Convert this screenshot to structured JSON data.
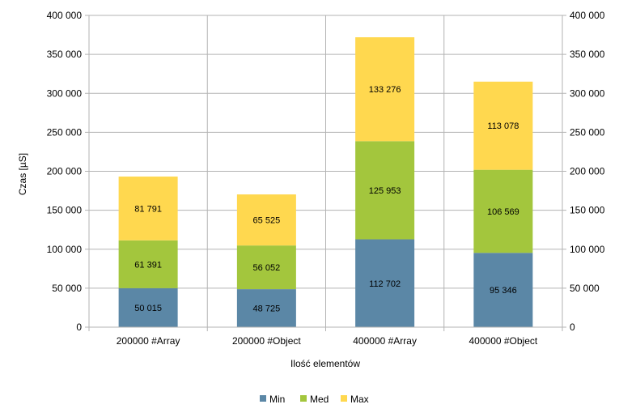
{
  "chart_data": {
    "type": "bar",
    "stacked": true,
    "categories": [
      "200000 #Array",
      "200000 #Object",
      "400000 #Array",
      "400000 #Object"
    ],
    "series": [
      {
        "name": "Min",
        "values": [
          50015,
          48725,
          112702,
          95346
        ],
        "labels": [
          "50 015",
          "48 725",
          "112 702",
          "95 346"
        ],
        "color": "#5b87a6"
      },
      {
        "name": "Med",
        "values": [
          61391,
          56052,
          125953,
          106569
        ],
        "labels": [
          "61 391",
          "56 052",
          "125 953",
          "106 569"
        ],
        "color": "#a3c63d"
      },
      {
        "name": "Max",
        "values": [
          81791,
          65525,
          133276,
          113078
        ],
        "labels": [
          "81 791",
          "65 525",
          "133 276",
          "113 078"
        ],
        "color": "#ffd84f"
      }
    ],
    "xlabel": "Ilość elementów",
    "ylabel": "Czas [µS]",
    "ylim": [
      0,
      400000
    ],
    "yticks": [
      0,
      50000,
      100000,
      150000,
      200000,
      250000,
      300000,
      350000,
      400000
    ],
    "ytick_labels": [
      "0",
      "50 000",
      "100 000",
      "150 000",
      "200 000",
      "250 000",
      "300 000",
      "350 000",
      "400 000"
    ],
    "secondary_y_axis": true,
    "grid": true,
    "legend_position": "bottom"
  }
}
